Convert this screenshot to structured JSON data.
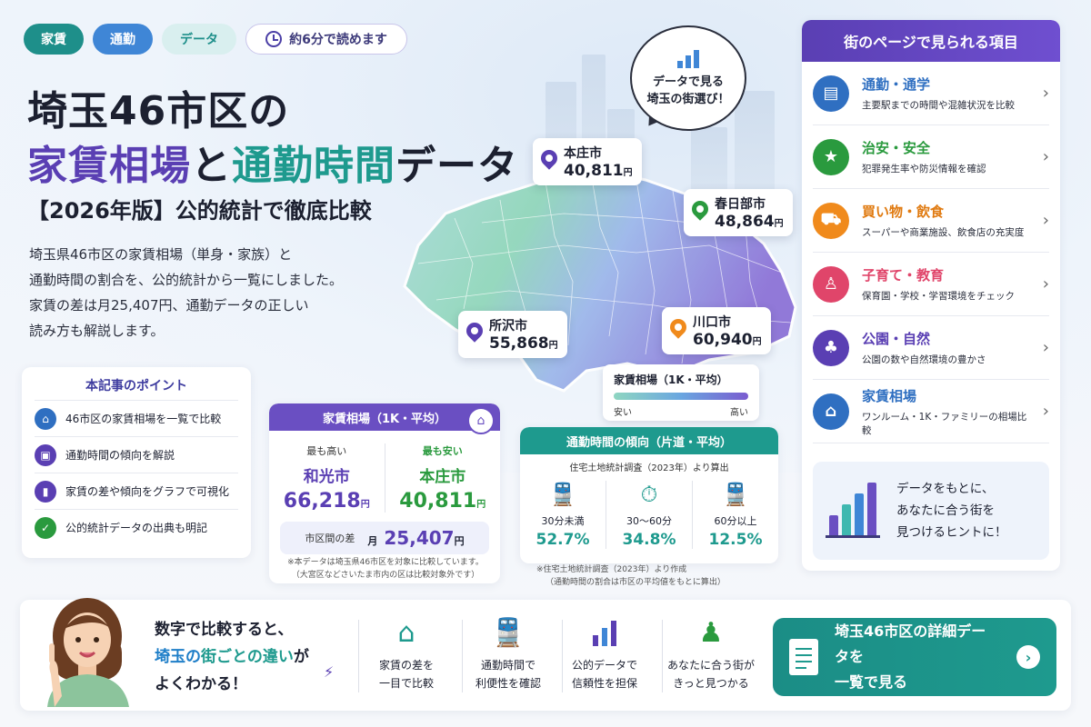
{
  "tags": [
    "家賃",
    "通勤",
    "データ"
  ],
  "read_time": "約6分で読めます",
  "title": {
    "line1": "埼玉46市区の",
    "line2_a": "家賃相場",
    "line2_b": "と",
    "line2_c": "通勤時間",
    "line2_d": "データ",
    "line3": "【2026年版】公的統計で徹底比較"
  },
  "lead": [
    "埼玉県46市区の家賃相場（単身・家族）と",
    "通勤時間の割合を、公的統計から一覧にしました。",
    "家賃の差は月25,407円、通勤データの正しい",
    "読み方も解説します。"
  ],
  "bubble": {
    "line1": "データで見る",
    "line2": "埼玉の街選び！"
  },
  "pins": [
    {
      "name": "本庄市",
      "value": "40,811",
      "unit": "円",
      "color": "#5a3fb3"
    },
    {
      "name": "春日部市",
      "value": "48,864",
      "unit": "円",
      "color": "#2a9a3e"
    },
    {
      "name": "所沢市",
      "value": "55,868",
      "unit": "円",
      "color": "#5a3fb3"
    },
    {
      "name": "川口市",
      "value": "60,940",
      "unit": "円",
      "color": "#f08a1c"
    }
  ],
  "legend": {
    "title": "家賃相場（1K・平均）",
    "low": "安い",
    "high": "高い"
  },
  "points": {
    "title": "本記事のポイント",
    "items": [
      {
        "text": "46市区の家賃相場を一覧で比較",
        "icon": "house-icon",
        "color": "#2f6fc1"
      },
      {
        "text": "通勤時間の傾向を解説",
        "icon": "train-icon",
        "color": "#5a3fb3"
      },
      {
        "text": "家賃の差や傾向をグラフで可視化",
        "icon": "bar-chart-icon",
        "color": "#5a3fb3"
      },
      {
        "text": "公的統計データの出典も明記",
        "icon": "shield-check-icon",
        "color": "#2a9a3e"
      }
    ]
  },
  "rent_card": {
    "header": "家賃相場（1K・平均）",
    "high_label": "最も高い",
    "high_city": "和光市",
    "high_value": "66,218",
    "low_label": "最も安い",
    "low_city": "本庄市",
    "low_value": "40,811",
    "unit": "円",
    "diff_label": "市区間の差",
    "diff_prefix": "月",
    "diff_value": "25,407",
    "note1": "※本データは埼玉県46市区を対象に比較しています。",
    "note2": "（大宮区などさいたま市内の区は比較対象外です）"
  },
  "commute_card": {
    "header": "通勤時間の傾向（片道・平均）",
    "sub": "住宅土地統計調査（2023年）より算出",
    "cols": [
      {
        "label": "30分未満",
        "pct": "52.7%",
        "icon": "train-icon"
      },
      {
        "label": "30〜60分",
        "pct": "34.8%",
        "icon": "clock-icon"
      },
      {
        "label": "60分以上",
        "pct": "12.5%",
        "icon": "train-icon"
      }
    ],
    "note1": "※住宅土地統計調査（2023年）より作成",
    "note2": "（通勤時間の割合は市区の平均値をもとに算出）"
  },
  "right_panel": {
    "header": "街のページで見られる項目",
    "items": [
      {
        "title": "通勤・通学",
        "desc": "主要駅までの時間や混雑状況を比較",
        "color": "#2f6fc1",
        "icon": "train-icon",
        "glyph": "▤"
      },
      {
        "title": "治安・安全",
        "desc": "犯罪発生率や防災情報を確認",
        "color": "#2a9a3e",
        "icon": "shield-icon",
        "glyph": "★"
      },
      {
        "title": "買い物・飲食",
        "desc": "スーパーや商業施設、飲食店の充実度",
        "color": "#f08a1c",
        "icon": "cart-icon",
        "glyph": "⛟"
      },
      {
        "title": "子育て・教育",
        "desc": "保育園・学校・学習環境をチェック",
        "color": "#e0456a",
        "icon": "family-icon",
        "glyph": "👪"
      },
      {
        "title": "公園・自然",
        "desc": "公園の数や自然環境の豊かさ",
        "color": "#5a3fb3",
        "icon": "tree-icon",
        "glyph": "♣"
      },
      {
        "title": "家賃相場",
        "desc": "ワンルーム・1K・ファミリーの相場比較",
        "color": "#2f6fc1",
        "icon": "house-icon",
        "glyph": "⌂"
      }
    ],
    "hint": [
      "データをもとに、",
      "あなたに合う街を",
      "見つけるヒントに！"
    ]
  },
  "bottom": {
    "quote_l1": "数字で比較すると、",
    "quote_l2a": "埼玉の",
    "quote_l2b": "街ごとの違い",
    "quote_l2c": "が",
    "quote_l3": "よくわかる！",
    "features": [
      {
        "l1": "家賃の差を",
        "l2": "一目で比較",
        "icon": "house-icon",
        "glyph": "⌂",
        "color": "#1e9a8e"
      },
      {
        "l1": "通勤時間で",
        "l2": "利便性を確認",
        "icon": "train-icon",
        "glyph": "▣",
        "color": "#1e9a8e"
      },
      {
        "l1": "公的データで",
        "l2": "信頼性を担保",
        "icon": "bar-chart-icon",
        "glyph": "▮",
        "color": "#5a3fb3"
      },
      {
        "l1": "あなたに合う街が",
        "l2": "きっと見つかる",
        "icon": "person-search-icon",
        "glyph": "♟",
        "color": "#2a9a3e"
      }
    ],
    "cta_l1": "埼玉46市区の詳細データを",
    "cta_l2": "一覧で見る"
  }
}
